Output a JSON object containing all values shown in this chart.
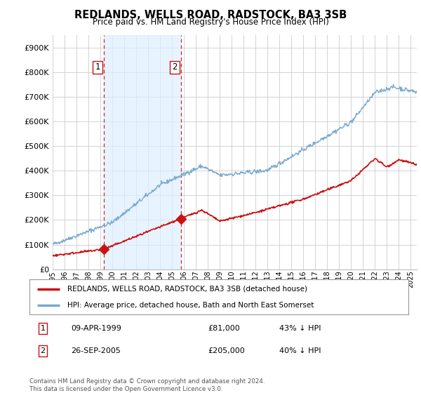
{
  "title": "REDLANDS, WELLS ROAD, RADSTOCK, BA3 3SB",
  "subtitle": "Price paid vs. HM Land Registry's House Price Index (HPI)",
  "background_color": "#ffffff",
  "grid_color": "#cccccc",
  "hpi_color": "#7aaad0",
  "hpi_fill_color": "#ddeeff",
  "price_color": "#cc1111",
  "ylim": [
    0,
    950000
  ],
  "yticks": [
    0,
    100000,
    200000,
    300000,
    400000,
    500000,
    600000,
    700000,
    800000,
    900000
  ],
  "ytick_labels": [
    "£0",
    "£100K",
    "£200K",
    "£300K",
    "£400K",
    "£500K",
    "£600K",
    "£700K",
    "£800K",
    "£900K"
  ],
  "sale1_x": 1999.27,
  "sale1_y": 81000,
  "sale2_x": 2005.73,
  "sale2_y": 205000,
  "legend_line1": "REDLANDS, WELLS ROAD, RADSTOCK, BA3 3SB (detached house)",
  "legend_line2": "HPI: Average price, detached house, Bath and North East Somerset",
  "table_row1": [
    "1",
    "09-APR-1999",
    "£81,000",
    "43% ↓ HPI"
  ],
  "table_row2": [
    "2",
    "26-SEP-2005",
    "£205,000",
    "40% ↓ HPI"
  ],
  "footnote": "Contains HM Land Registry data © Crown copyright and database right 2024.\nThis data is licensed under the Open Government Licence v3.0.",
  "vline1_x": 1999.27,
  "vline2_x": 2005.73,
  "xmin": 1995,
  "xmax": 2025.5
}
